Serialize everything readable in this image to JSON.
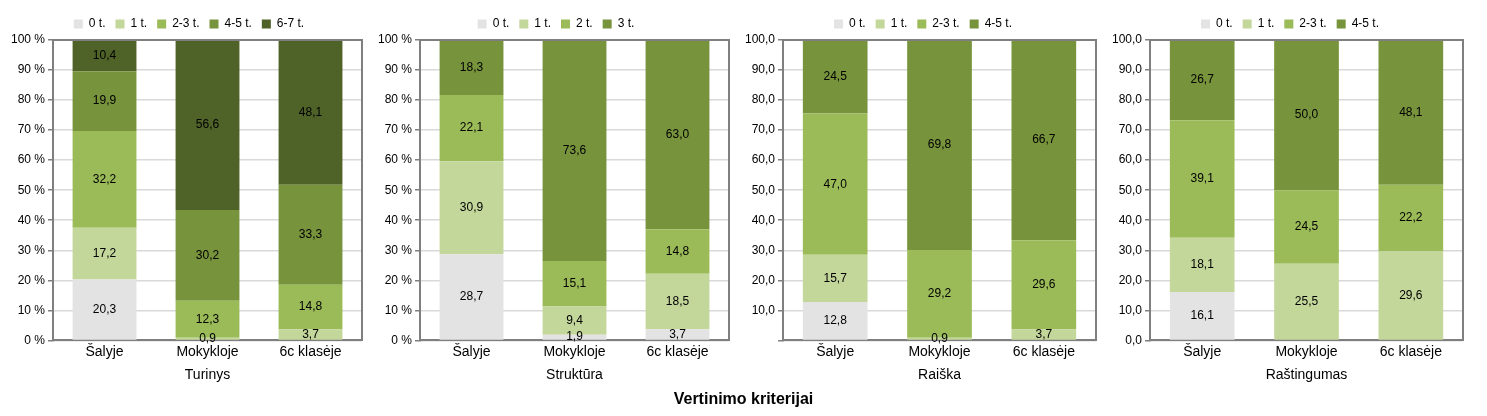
{
  "chart_data": [
    {
      "type": "bar",
      "stacked": true,
      "xlabel": "Turinys",
      "categories": [
        "Šalyje",
        "Mokykloje",
        "6c klasėje"
      ],
      "ylim": [
        0,
        100
      ],
      "yticks": [
        {
          "value": 0,
          "label": "0 %"
        },
        {
          "value": 10,
          "label": "10 %"
        },
        {
          "value": 20,
          "label": "20 %"
        },
        {
          "value": 30,
          "label": "30 %"
        },
        {
          "value": 40,
          "label": "40 %"
        },
        {
          "value": 50,
          "label": "50 %"
        },
        {
          "value": 60,
          "label": "60 %"
        },
        {
          "value": 70,
          "label": "70 %"
        },
        {
          "value": 80,
          "label": "80 %"
        },
        {
          "value": 90,
          "label": "90 %"
        },
        {
          "value": 100,
          "label": "100 %"
        }
      ],
      "grid": "y",
      "legend": "top",
      "series": [
        {
          "name": "0 t.",
          "color": "#e3e3e3",
          "values": [
            20.3,
            null,
            null
          ],
          "value_labels": [
            "20,3",
            null,
            null
          ]
        },
        {
          "name": "1 t.",
          "color": "#c4d79b",
          "values": [
            17.2,
            0.9,
            3.7
          ],
          "value_labels": [
            "17,2",
            "0,9",
            "3,7"
          ]
        },
        {
          "name": "2-3 t.",
          "color": "#9bbb59",
          "values": [
            32.2,
            12.3,
            14.8
          ],
          "value_labels": [
            "32,2",
            "12,3",
            "14,8"
          ]
        },
        {
          "name": "4-5 t.",
          "color": "#77933c",
          "values": [
            19.9,
            30.2,
            33.3
          ],
          "value_labels": [
            "19,9",
            "30,2",
            "33,3"
          ]
        },
        {
          "name": "6-7 t.",
          "color": "#4f6228",
          "values": [
            10.4,
            56.6,
            48.1
          ],
          "value_labels": [
            "10,4",
            "56,6",
            "48,1"
          ]
        }
      ]
    },
    {
      "type": "bar",
      "stacked": true,
      "xlabel": "Struktūra",
      "categories": [
        "Šalyje",
        "Mokykloje",
        "6c klasėje"
      ],
      "ylim": [
        0,
        100
      ],
      "yticks": [
        {
          "value": 0,
          "label": "0 %"
        },
        {
          "value": 10,
          "label": "10 %"
        },
        {
          "value": 20,
          "label": "20 %"
        },
        {
          "value": 30,
          "label": "30 %"
        },
        {
          "value": 40,
          "label": "40 %"
        },
        {
          "value": 50,
          "label": "50 %"
        },
        {
          "value": 60,
          "label": "60 %"
        },
        {
          "value": 70,
          "label": "70 %"
        },
        {
          "value": 80,
          "label": "80 %"
        },
        {
          "value": 90,
          "label": "90 %"
        },
        {
          "value": 100,
          "label": "100 %"
        }
      ],
      "grid": "y",
      "legend": "top",
      "series": [
        {
          "name": "0 t.",
          "color": "#e3e3e3",
          "values": [
            28.7,
            1.9,
            3.7
          ],
          "value_labels": [
            "28,7",
            "1,9",
            "3,7"
          ]
        },
        {
          "name": "1 t.",
          "color": "#c4d79b",
          "values": [
            30.9,
            9.4,
            18.5
          ],
          "value_labels": [
            "30,9",
            "9,4",
            "18,5"
          ]
        },
        {
          "name": "2 t.",
          "color": "#9bbb59",
          "values": [
            22.1,
            15.1,
            14.8
          ],
          "value_labels": [
            "22,1",
            "15,1",
            "14,8"
          ]
        },
        {
          "name": "3 t.",
          "color": "#77933c",
          "values": [
            18.3,
            73.6,
            63.0
          ],
          "value_labels": [
            "18,3",
            "73,6",
            "63,0"
          ]
        }
      ]
    },
    {
      "type": "bar",
      "stacked": true,
      "xlabel": "Raiška",
      "categories": [
        "Šalyje",
        "Mokykloje",
        "6c klasėje"
      ],
      "ylim": [
        0,
        100
      ],
      "yticks": [
        {
          "value": 0,
          "label": null
        },
        {
          "value": 10,
          "label": "10,0"
        },
        {
          "value": 20,
          "label": "20,0"
        },
        {
          "value": 30,
          "label": "30,0"
        },
        {
          "value": 40,
          "label": "40,0"
        },
        {
          "value": 50,
          "label": "50,0"
        },
        {
          "value": 60,
          "label": "60,0"
        },
        {
          "value": 70,
          "label": "70,0"
        },
        {
          "value": 80,
          "label": "80,0"
        },
        {
          "value": 90,
          "label": "90,0"
        },
        {
          "value": 100,
          "label": "100,0"
        }
      ],
      "grid": "y",
      "legend": "top",
      "series": [
        {
          "name": "0 t.",
          "color": "#e3e3e3",
          "values": [
            12.8,
            null,
            null
          ],
          "value_labels": [
            "12,8",
            null,
            null
          ]
        },
        {
          "name": "1 t.",
          "color": "#c4d79b",
          "values": [
            15.7,
            0.9,
            3.7
          ],
          "value_labels": [
            "15,7",
            "0,9",
            "3,7"
          ]
        },
        {
          "name": "2-3 t.",
          "color": "#9bbb59",
          "values": [
            47.0,
            29.2,
            29.6
          ],
          "value_labels": [
            "47,0",
            "29,2",
            "29,6"
          ]
        },
        {
          "name": "4-5 t.",
          "color": "#77933c",
          "values": [
            24.5,
            69.8,
            66.7
          ],
          "value_labels": [
            "24,5",
            "69,8",
            "66,7"
          ]
        }
      ]
    },
    {
      "type": "bar",
      "stacked": true,
      "xlabel": "Raštingumas",
      "categories": [
        "Šalyje",
        "Mokykloje",
        "6c klasėje"
      ],
      "ylim": [
        0,
        100
      ],
      "yticks": [
        {
          "value": 0,
          "label": "0,0"
        },
        {
          "value": 10,
          "label": "10,0"
        },
        {
          "value": 20,
          "label": "20,0"
        },
        {
          "value": 30,
          "label": "30,0"
        },
        {
          "value": 40,
          "label": "40,0"
        },
        {
          "value": 50,
          "label": "50,0"
        },
        {
          "value": 60,
          "label": "60,0"
        },
        {
          "value": 70,
          "label": "70,0"
        },
        {
          "value": 80,
          "label": "80,0"
        },
        {
          "value": 90,
          "label": "90,0"
        },
        {
          "value": 100,
          "label": "100,0"
        }
      ],
      "grid": "y",
      "legend": "top",
      "series": [
        {
          "name": "0 t.",
          "color": "#e3e3e3",
          "values": [
            16.1,
            null,
            null
          ],
          "value_labels": [
            "16,1",
            null,
            null
          ]
        },
        {
          "name": "1 t.",
          "color": "#c4d79b",
          "values": [
            18.1,
            25.5,
            29.6
          ],
          "value_labels": [
            "18,1",
            "25,5",
            "29,6"
          ]
        },
        {
          "name": "2-3 t.",
          "color": "#9bbb59",
          "values": [
            39.1,
            24.5,
            22.2
          ],
          "value_labels": [
            "39,1",
            "24,5",
            "22,2"
          ]
        },
        {
          "name": "4-5 t.",
          "color": "#77933c",
          "values": [
            26.7,
            50.0,
            48.1
          ],
          "value_labels": [
            "26,7",
            "50,0",
            "48,1"
          ]
        }
      ]
    },
    {
      "type": "other",
      "title": "Vertinimo kriterijai"
    }
  ]
}
